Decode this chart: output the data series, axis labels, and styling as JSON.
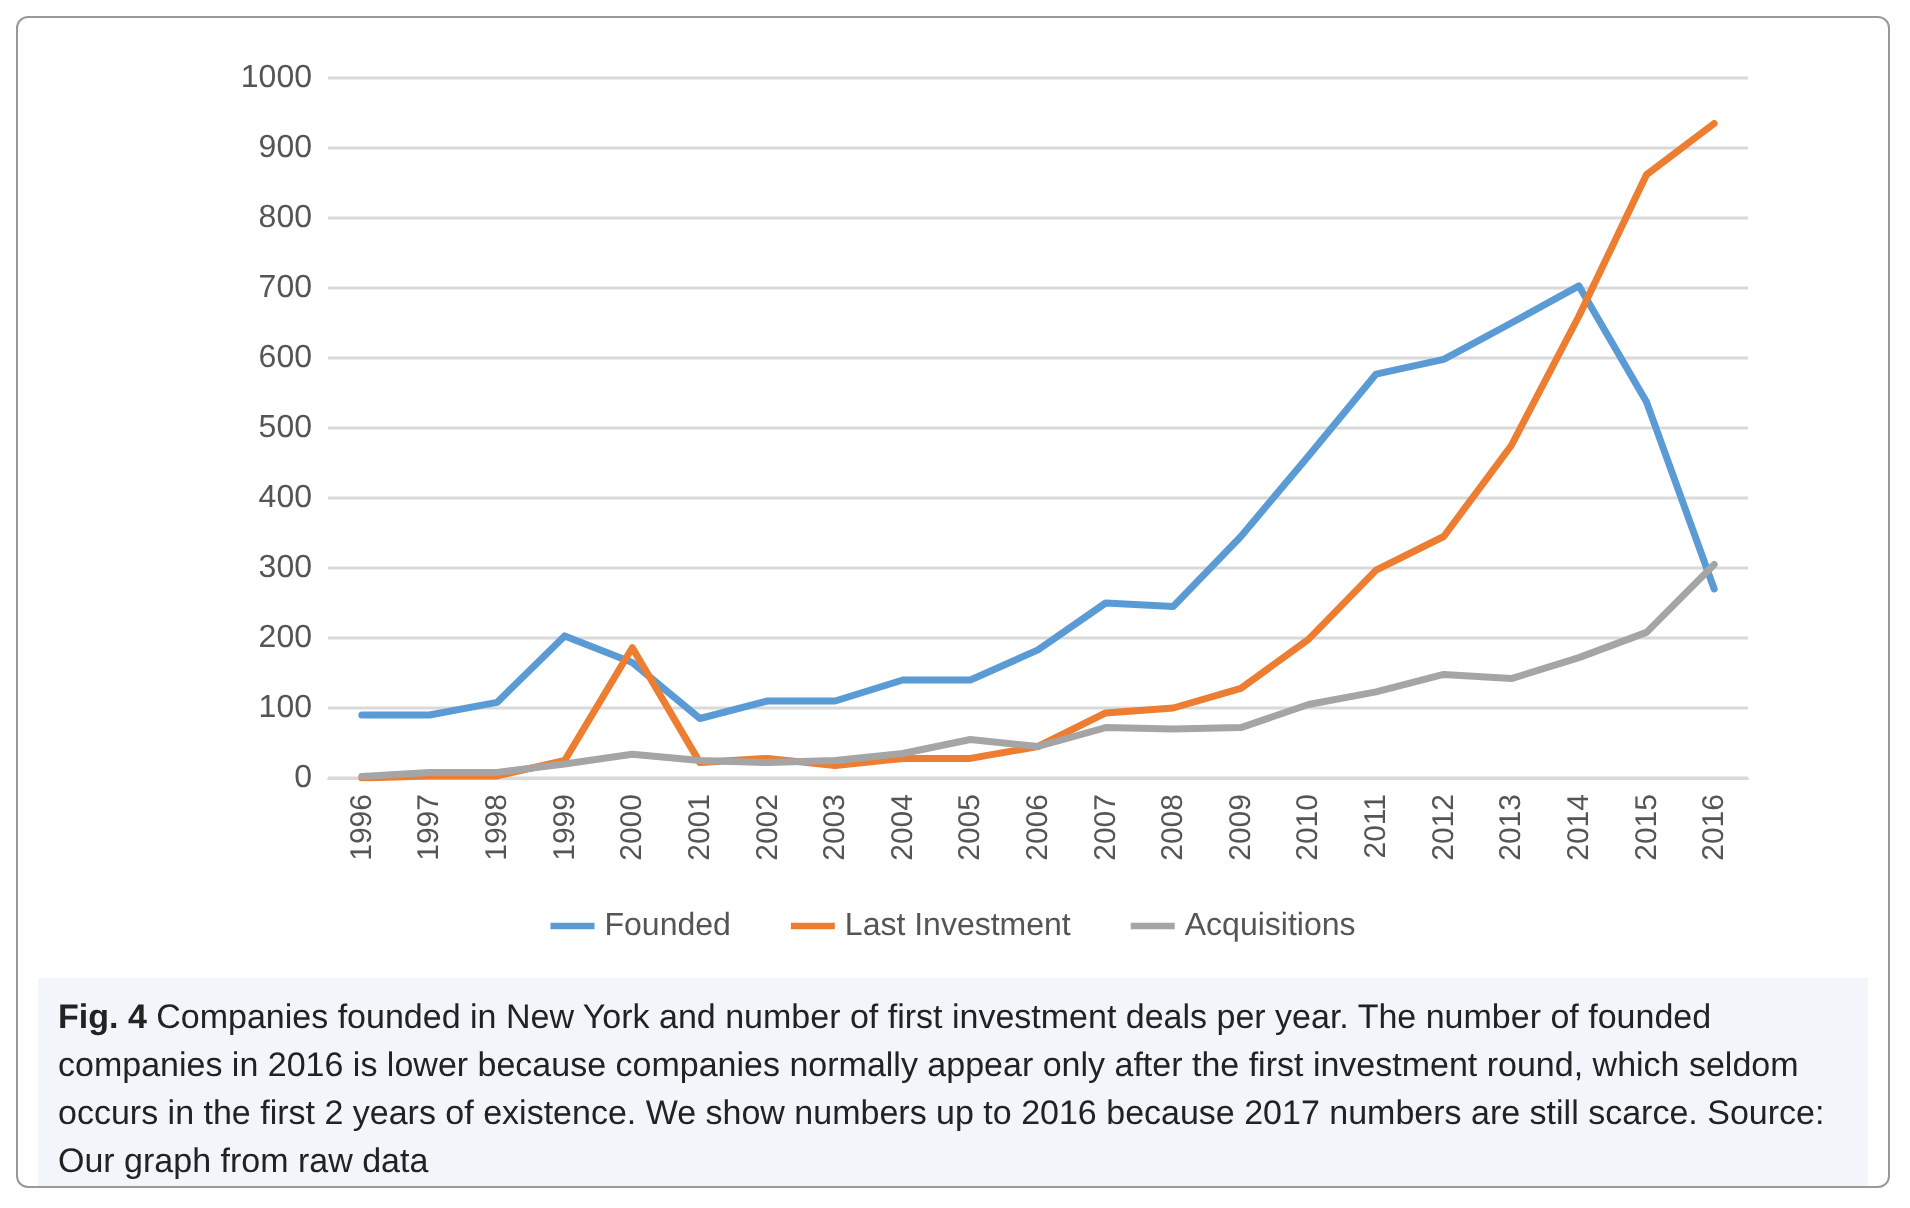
{
  "chart_data": {
    "type": "line",
    "categories": [
      "1996",
      "1997",
      "1998",
      "1999",
      "2000",
      "2001",
      "2002",
      "2003",
      "2004",
      "2005",
      "2006",
      "2007",
      "2008",
      "2009",
      "2010",
      "2011",
      "2012",
      "2013",
      "2014",
      "2015",
      "2016"
    ],
    "series": [
      {
        "name": "Founded",
        "color": "#5b9bd5",
        "values": [
          90,
          90,
          108,
          203,
          165,
          85,
          110,
          110,
          140,
          140,
          183,
          250,
          245,
          345,
          460,
          577,
          598,
          650,
          703,
          537,
          270
        ]
      },
      {
        "name": "Last Investment",
        "color": "#ed7d31",
        "values": [
          0,
          3,
          3,
          25,
          186,
          22,
          28,
          18,
          28,
          28,
          45,
          93,
          100,
          128,
          198,
          297,
          345,
          475,
          660,
          862,
          935
        ]
      },
      {
        "name": "Acquisitions",
        "color": "#a5a5a5",
        "values": [
          2,
          8,
          8,
          20,
          34,
          25,
          22,
          25,
          35,
          55,
          45,
          72,
          70,
          72,
          105,
          123,
          148,
          142,
          172,
          208,
          305
        ]
      }
    ],
    "ylim": [
      0,
      1000
    ],
    "yticks": [
      0,
      100,
      200,
      300,
      400,
      500,
      600,
      700,
      800,
      900,
      1000
    ],
    "grid": "y",
    "legend": "bottom",
    "marker": "none",
    "line_style": "solid",
    "annotations": [
      "Fig. 4",
      "Companies founded in New York and number of first investment deals per year. The number of founded companies in 2016 is lower because companies normally appear only after the first investment round, which seldom occurs in the first 2 years of existence. We show numbers up to 2016 because 2017 numbers are still scarce. Source: Our graph from raw data"
    ]
  }
}
